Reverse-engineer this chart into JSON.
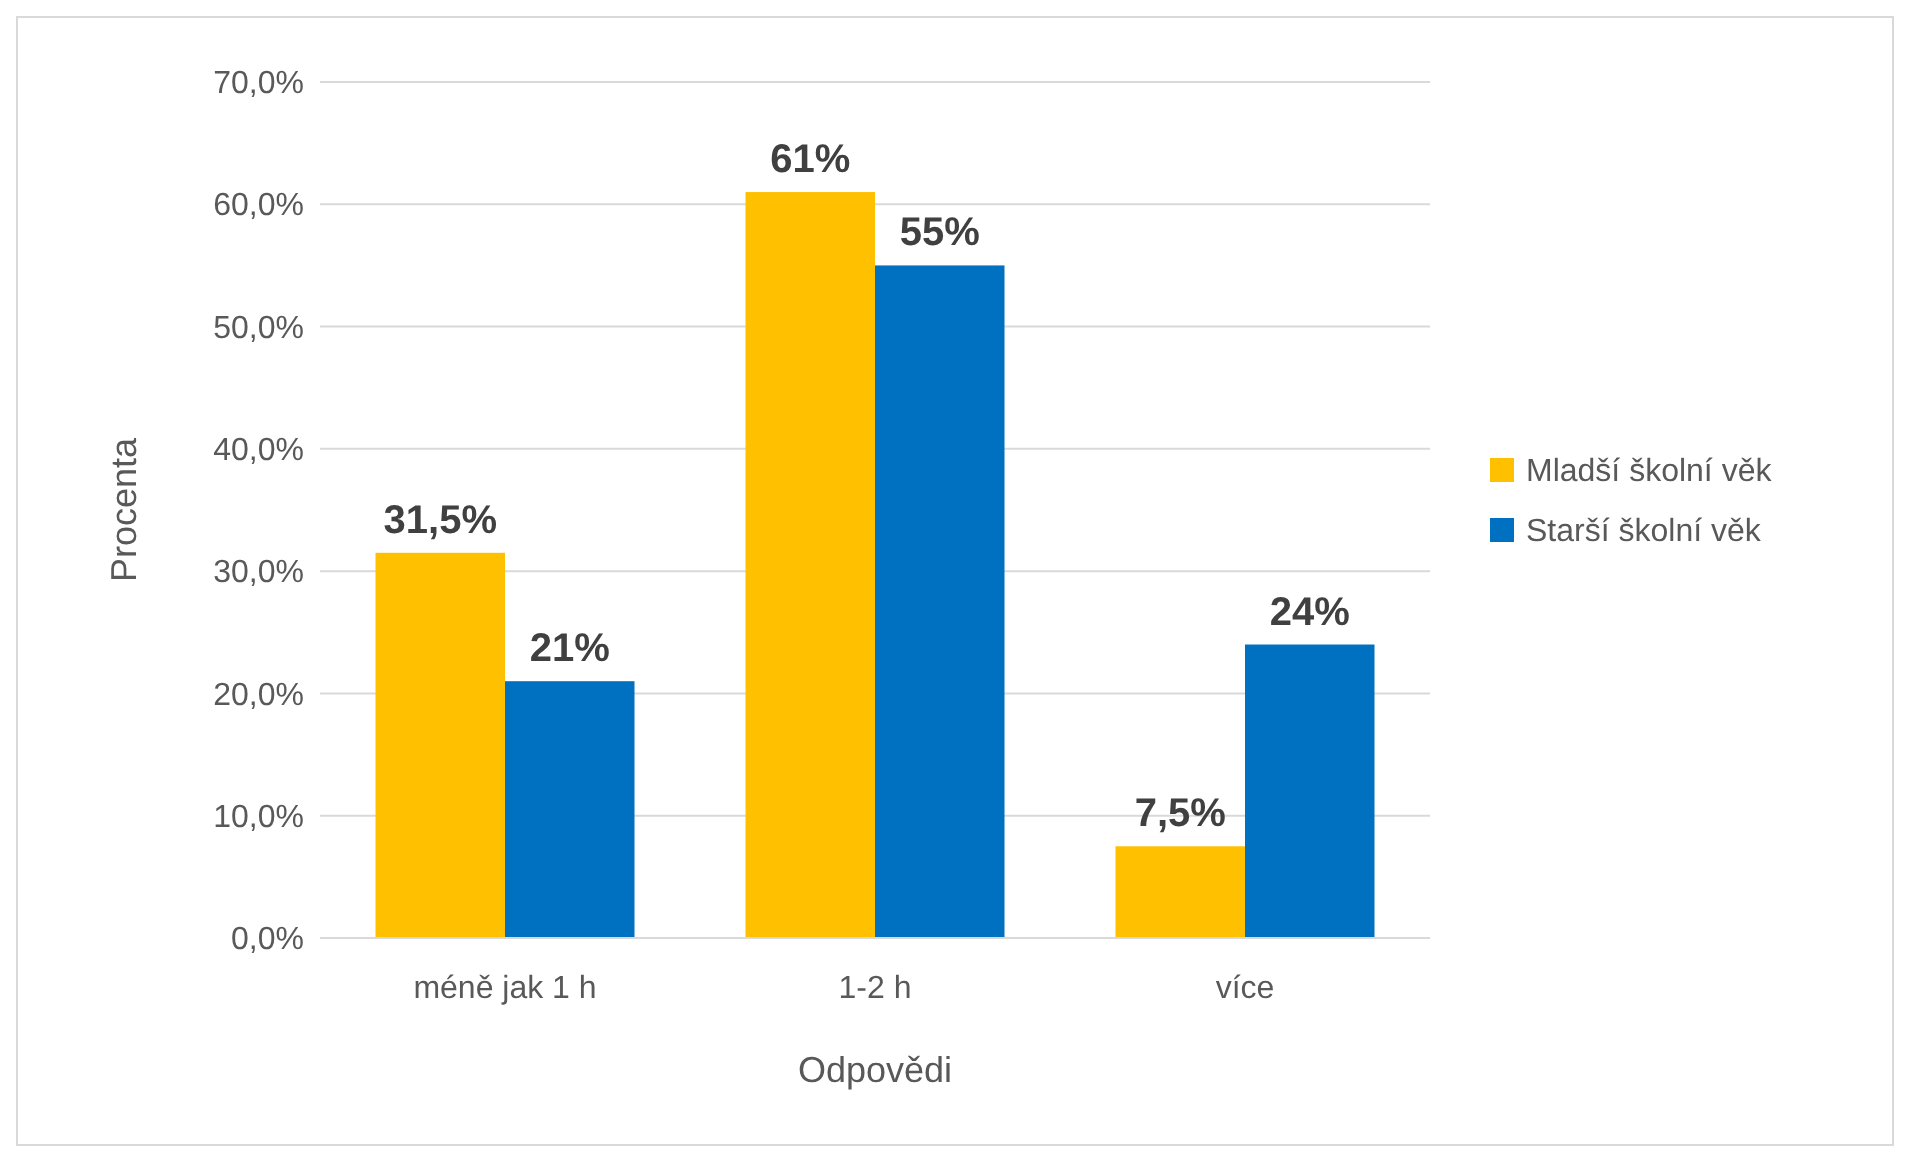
{
  "chart_data": {
    "type": "bar",
    "xlabel": "Odpovědi",
    "ylabel": "Procenta",
    "categories": [
      "méně jak 1 h",
      "1-2 h",
      "více"
    ],
    "series": [
      {
        "name": "Mladší školní věk",
        "color": "#ffc000",
        "values": [
          31.5,
          61,
          7.5
        ],
        "value_labels": [
          "31,5%",
          "61%",
          "7,5%"
        ]
      },
      {
        "name": "Starší školní věk",
        "color": "#0070c0",
        "values": [
          21,
          55,
          24
        ],
        "value_labels": [
          "21%",
          "55%",
          "24%"
        ]
      }
    ],
    "ylim": [
      0,
      70
    ],
    "yticks": [
      {
        "value": 0,
        "label": "0,0%"
      },
      {
        "value": 10,
        "label": "10,0%"
      },
      {
        "value": 20,
        "label": "20,0%"
      },
      {
        "value": 30,
        "label": "30,0%"
      },
      {
        "value": 40,
        "label": "40,0%"
      },
      {
        "value": 50,
        "label": "50,0%"
      },
      {
        "value": 60,
        "label": "60,0%"
      },
      {
        "value": 70,
        "label": "70,0%"
      }
    ],
    "grid": "y",
    "legend": "right"
  }
}
